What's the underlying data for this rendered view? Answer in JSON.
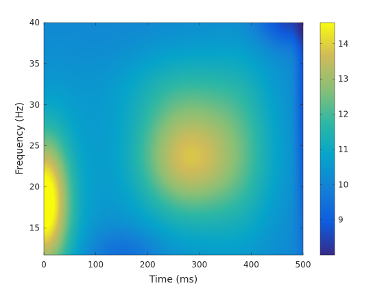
{
  "chart_data": {
    "type": "heatmap",
    "title": "",
    "xlabel": "Time (ms)",
    "ylabel": "Frequency (Hz)",
    "xlim": [
      0,
      500
    ],
    "ylim": [
      11.7,
      40
    ],
    "x_ticks": [
      0,
      100,
      200,
      300,
      400,
      500
    ],
    "y_ticks": [
      15,
      20,
      25,
      30,
      35,
      40
    ],
    "colorbar": {
      "min": 8.0,
      "max": 14.6,
      "ticks": [
        9,
        10,
        11,
        12,
        13,
        14
      ],
      "colormap": "parula"
    },
    "grid": false,
    "blobs": [
      {
        "name": "early-low-frequency-peak",
        "x": 0,
        "y": 18,
        "sx": 32,
        "sy": 5.5,
        "amp": 4.3
      },
      {
        "name": "early-low-frequency-halo",
        "x": 20,
        "y": 18,
        "sx": 60,
        "sy": 11,
        "amp": 1.0
      },
      {
        "name": "central-beta-peak",
        "x": 275,
        "y": 23.5,
        "sx": 65,
        "sy": 4.5,
        "amp": 2.2
      },
      {
        "name": "central-broad-activity",
        "x": 300,
        "y": 24,
        "sx": 100,
        "sy": 8,
        "amp": 1.6
      },
      {
        "name": "upper-extension",
        "x": 250,
        "y": 32,
        "sx": 95,
        "sy": 3.5,
        "amp": 0.6
      },
      {
        "name": "late-activity",
        "x": 385,
        "y": 25,
        "sx": 45,
        "sy": 9,
        "amp": 0.7
      }
    ],
    "baseline": 10.0,
    "dips": [
      {
        "name": "right-edge-dip",
        "x": 500,
        "y": 30,
        "sx": 10,
        "sy": 12,
        "amp": 1.3
      },
      {
        "name": "top-right-dip",
        "x": 470,
        "y": 40,
        "sx": 40,
        "sy": 2,
        "amp": 1.5
      },
      {
        "name": "low-frequency-trough",
        "x": 150,
        "y": 12,
        "sx": 50,
        "sy": 2,
        "amp": 0.8
      }
    ]
  }
}
